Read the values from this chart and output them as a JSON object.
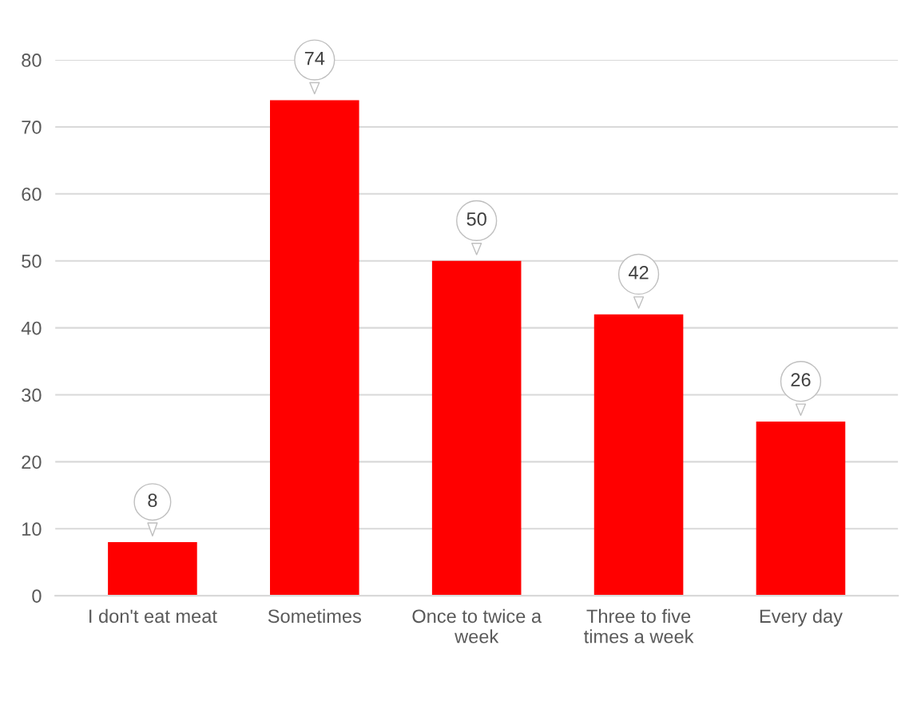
{
  "chart_data": {
    "type": "bar",
    "categories": [
      "I don't eat meat",
      "Sometimes",
      "Once to twice a\nweek",
      "Three to five\ntimes a week",
      "Every day"
    ],
    "values": [
      8,
      74,
      50,
      42,
      26
    ],
    "color": "#ff0000",
    "ylim": [
      0,
      80
    ],
    "yticks": [
      0,
      10,
      20,
      30,
      40,
      50,
      60,
      70,
      80
    ],
    "grid": "y",
    "data_labels": true
  }
}
